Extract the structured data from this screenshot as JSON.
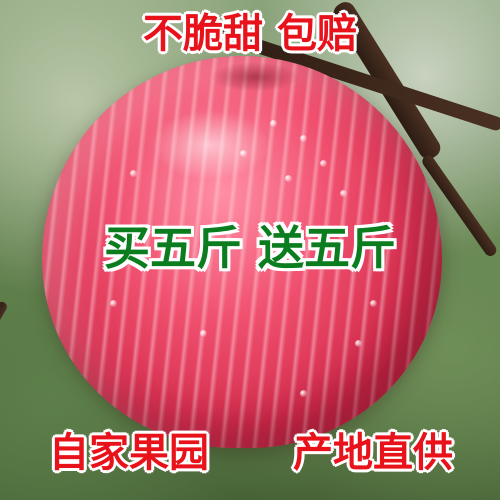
{
  "image": {
    "subject": "apple",
    "top_slogan": "不脆甜 包赔",
    "promo": "买五斤 送五斤",
    "bottom_left": "自家果园",
    "bottom_right": "产地直供",
    "colors": {
      "slogan_red": "#e8121b",
      "promo_green": "#0b7d1f",
      "outline_white": "#ffffff",
      "apple_red": "#d62e4f"
    }
  }
}
